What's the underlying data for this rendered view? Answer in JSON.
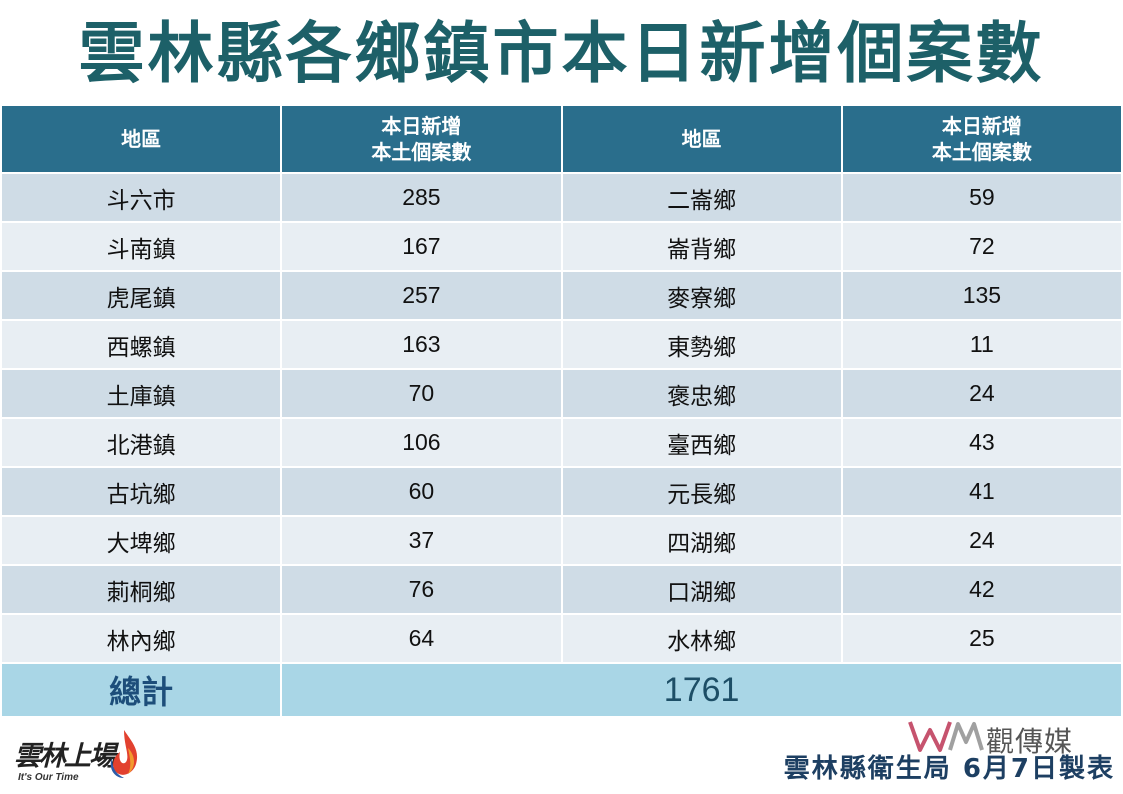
{
  "title": "雲林縣各鄉鎮市本日新增個案數",
  "table": {
    "headers": {
      "region_left": "地區",
      "count_left_line1": "本日新增",
      "count_left_line2": "本土個案數",
      "region_right": "地區",
      "count_right_line1": "本日新增",
      "count_right_line2": "本土個案數"
    },
    "rows": [
      {
        "left_region": "斗六市",
        "left_count": "285",
        "right_region": "二崙鄉",
        "right_count": "59"
      },
      {
        "left_region": "斗南鎮",
        "left_count": "167",
        "right_region": "崙背鄉",
        "right_count": "72"
      },
      {
        "left_region": "虎尾鎮",
        "left_count": "257",
        "right_region": "麥寮鄉",
        "right_count": "135"
      },
      {
        "left_region": "西螺鎮",
        "left_count": "163",
        "right_region": "東勢鄉",
        "right_count": "11"
      },
      {
        "left_region": "土庫鎮",
        "left_count": "70",
        "right_region": "褒忠鄉",
        "right_count": "24"
      },
      {
        "left_region": "北港鎮",
        "left_count": "106",
        "right_region": "臺西鄉",
        "right_count": "43"
      },
      {
        "left_region": "古坑鄉",
        "left_count": "60",
        "right_region": "元長鄉",
        "right_count": "41"
      },
      {
        "left_region": "大埤鄉",
        "left_count": "37",
        "right_region": "四湖鄉",
        "right_count": "24"
      },
      {
        "left_region": "莿桐鄉",
        "left_count": "76",
        "right_region": "口湖鄉",
        "right_count": "42"
      },
      {
        "left_region": "林內鄉",
        "left_count": "64",
        "right_region": "水林鄉",
        "right_count": "25"
      }
    ],
    "total_label": "總計",
    "total_value": "1761"
  },
  "logo": {
    "script_text": "雲林上場",
    "tagline": "It's Our Time",
    "icon": "flame-logo-icon"
  },
  "watermark": {
    "mark": "WM",
    "text": "觀傳媒"
  },
  "footer": "雲林縣衛生局 6月7日製表",
  "colors": {
    "title": "#1d6068",
    "header_bg": "#2a6e8c",
    "row_odd": "#cfdce6",
    "row_even": "#e8eef3",
    "total_bg": "#a9d6e6",
    "footer": "#1d3f62"
  }
}
